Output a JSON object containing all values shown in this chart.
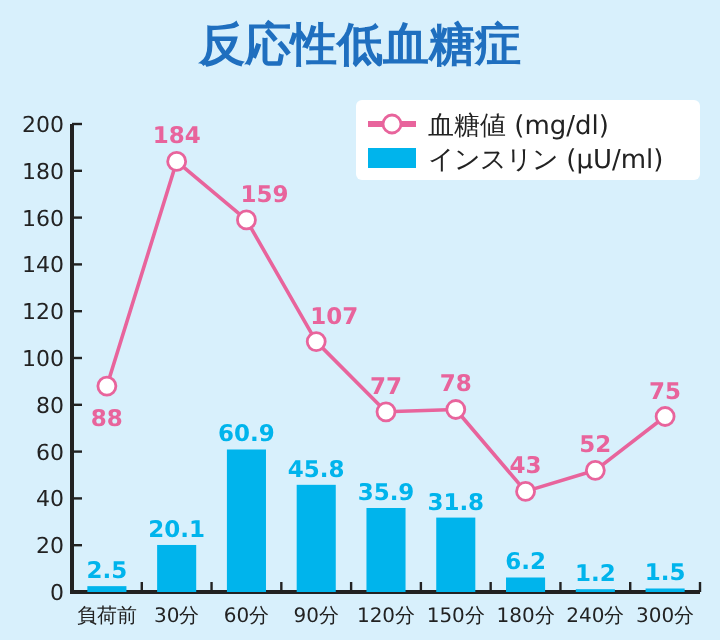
{
  "chart_data": {
    "type": "bar",
    "title": "反応性低血糖症",
    "categories": [
      "負荷前",
      "30分",
      "60分",
      "90分",
      "120分",
      "150分",
      "180分",
      "240分",
      "300分"
    ],
    "series": [
      {
        "name": "血糖値 (mg/dl)",
        "type": "line",
        "color": "#e8649c",
        "values": [
          88,
          184,
          159,
          107,
          77,
          78,
          43,
          52,
          75
        ]
      },
      {
        "name": "インスリン (μU/ml)",
        "color": "#00b4ec",
        "values": [
          2.5,
          20.1,
          60.9,
          45.8,
          35.9,
          31.8,
          6.2,
          1.2,
          1.5
        ]
      }
    ],
    "ylim": [
      0,
      200
    ],
    "yticks": [
      0,
      20,
      40,
      60,
      80,
      100,
      120,
      140,
      160,
      180,
      200
    ],
    "data_labels": true,
    "marker": "circle",
    "line_style": "solid",
    "legend": "top right",
    "grid": false
  }
}
